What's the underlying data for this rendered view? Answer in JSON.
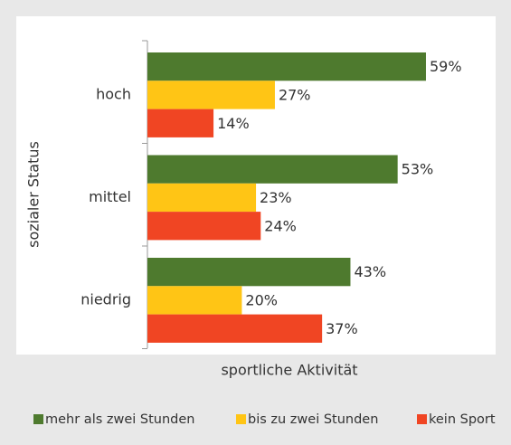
{
  "chart_data": {
    "type": "bar",
    "orientation": "horizontal",
    "y_label": "sozialer Status",
    "x_label": "sportliche Aktivität",
    "categories": [
      "hoch",
      "mittel",
      "niedrig"
    ],
    "series": [
      {
        "name": "mehr als zwei Stunden",
        "color": "#4e7a2e",
        "values": [
          59,
          53,
          43
        ],
        "value_labels": [
          "59%",
          "53%",
          "43%"
        ]
      },
      {
        "name": "bis zu zwei Stunden",
        "color": "#ffc515",
        "values": [
          27,
          23,
          20
        ],
        "value_labels": [
          "27%",
          "23%",
          "20%"
        ]
      },
      {
        "name": "kein Sport",
        "color": "#f04523",
        "values": [
          14,
          24,
          37
        ],
        "value_labels": [
          "14%",
          "24%",
          "37%"
        ]
      }
    ]
  }
}
